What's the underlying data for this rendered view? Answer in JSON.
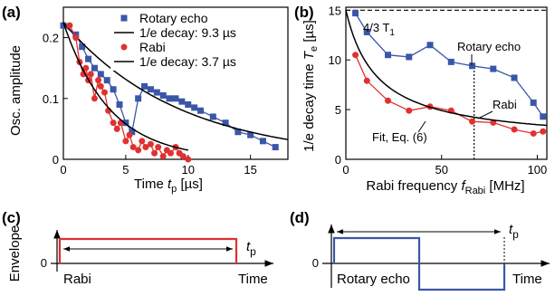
{
  "chart_data": [
    {
      "id": "a",
      "type": "scatter",
      "panel_label": "(a)",
      "xlabel_main": "Time ",
      "xlabel_italic": "t",
      "xlabel_sub": "p",
      "xlabel_unit": " [µs]",
      "ylabel": "Osc. amplitude",
      "xlim": [
        0,
        18
      ],
      "ylim": [
        0,
        0.25
      ],
      "xticks": [
        0,
        5,
        10,
        15
      ],
      "yticks": [
        0,
        0.1,
        0.2
      ],
      "ytick_labels": [
        "0",
        "0.1",
        "0.2"
      ],
      "legend": [
        "Rotary echo",
        "1/e decay: 9.3 µs",
        "Rabi",
        "1/e decay: 3.7 µs"
      ],
      "series": [
        {
          "name": "Rotary echo",
          "style": "markers-line",
          "marker": "square",
          "color": "#3a56a8",
          "x": [
            0.0,
            1.0,
            1.5,
            2.0,
            2.5,
            3.0,
            3.5,
            4.0,
            4.5,
            5.0,
            5.5,
            6.0,
            6.5,
            7.0,
            7.5,
            8.0,
            8.5,
            9.0,
            9.5,
            10.0,
            10.5,
            11.0,
            12.0,
            13.0,
            14.0,
            15.0,
            16.0,
            17.0
          ],
          "y": [
            0.22,
            0.205,
            0.185,
            0.165,
            0.15,
            0.14,
            0.13,
            0.115,
            0.09,
            0.06,
            0.045,
            0.1,
            0.12,
            0.115,
            0.11,
            0.105,
            0.1,
            0.1,
            0.095,
            0.09,
            0.085,
            0.08,
            0.07,
            0.06,
            0.045,
            0.04,
            0.03,
            0.02
          ]
        },
        {
          "name": "1/e decay: 9.3 µs",
          "style": "line",
          "color": "#000000",
          "model": "exp",
          "amplitude": 0.225,
          "tau": 9.3,
          "x_range": [
            0,
            18
          ]
        },
        {
          "name": "Rabi",
          "style": "markers-line",
          "marker": "circle",
          "color": "#e03131",
          "x": [
            0.5,
            1.0,
            1.3,
            1.6,
            1.8,
            2.0,
            2.2,
            2.5,
            2.8,
            3.0,
            3.3,
            3.6,
            4.0,
            4.3,
            4.6,
            5.0,
            5.3,
            5.6,
            6.0,
            6.3,
            6.6,
            7.0,
            7.3,
            7.6,
            8.0,
            8.3,
            8.6,
            9.0,
            9.3,
            9.6,
            10.0
          ],
          "y": [
            0.22,
            0.2,
            0.16,
            0.14,
            0.15,
            0.13,
            0.14,
            0.1,
            0.13,
            0.12,
            0.11,
            0.08,
            0.06,
            0.05,
            0.06,
            0.03,
            0.04,
            0.02,
            0.015,
            0.03,
            0.02,
            0.025,
            0.01,
            0.02,
            0.005,
            0.015,
            0.01,
            0.02,
            0.01,
            0.005,
            0.0
          ]
        },
        {
          "name": "1/e decay: 3.7 µs",
          "style": "line",
          "color": "#000000",
          "model": "exp",
          "amplitude": 0.225,
          "tau": 3.7,
          "x_range": [
            0,
            10
          ]
        }
      ]
    },
    {
      "id": "b",
      "type": "line",
      "panel_label": "(b)",
      "xlabel_main": "Rabi frequency ",
      "xlabel_italic": "f",
      "xlabel_sub": "Rabi",
      "xlabel_unit": " [MHz]",
      "ylabel_main": "1/e decay time ",
      "ylabel_italic": "T",
      "ylabel_sub": "e",
      "ylabel_unit": " [µs]",
      "xlim": [
        0,
        105
      ],
      "ylim": [
        0,
        15.3
      ],
      "xticks": [
        0,
        50,
        100
      ],
      "yticks": [
        0,
        5,
        10,
        15
      ],
      "series": [
        {
          "name": "Rotary echo",
          "marker": "square",
          "color": "#3a56a8",
          "x": [
            5,
            11,
            22,
            33,
            44,
            55,
            66,
            77,
            88,
            98,
            103
          ],
          "y": [
            14.7,
            12.8,
            10.5,
            10.3,
            11.5,
            9.8,
            9.4,
            9.1,
            8.2,
            5.7,
            4.3
          ]
        },
        {
          "name": "Rabi",
          "marker": "circle",
          "color": "#e03131",
          "x": [
            5,
            11,
            22,
            33,
            44,
            55,
            66,
            77,
            88,
            98,
            103
          ],
          "y": [
            10.5,
            7.9,
            5.9,
            4.9,
            5.3,
            4.9,
            3.8,
            3.7,
            3.0,
            2.6,
            2.8
          ]
        },
        {
          "name": "Fit, Eq. (6)",
          "style": "line",
          "color": "#000000",
          "model": "fit_curve",
          "y0": 15.0,
          "k": 0.061,
          "y_inf": 1.6,
          "x_range": [
            0,
            105
          ]
        }
      ],
      "hline": {
        "y": 15.0,
        "label_main": "4/3 T",
        "label_sub": "1",
        "style": "dashed"
      },
      "vline": {
        "x": 67,
        "style": "dotted"
      },
      "annotations": {
        "rotary": "Rotary echo",
        "rabi": "Rabi",
        "fit": "Fit, Eq. (6)"
      }
    }
  ],
  "panel_c": {
    "panel_label": "(c)",
    "ylabel": "Envelope",
    "zero_label": "0",
    "pulse_label": "Rabi",
    "time_label": "Time",
    "tp_italic": "t",
    "tp_sub": "p",
    "pulse_color": "#e03131"
  },
  "panel_d": {
    "panel_label": "(d)",
    "zero_label": "0",
    "pulse_label": "Rotary echo",
    "time_label": "Time",
    "tp_italic": "t",
    "tp_sub": "p",
    "pulse_color": "#3a56a8"
  }
}
